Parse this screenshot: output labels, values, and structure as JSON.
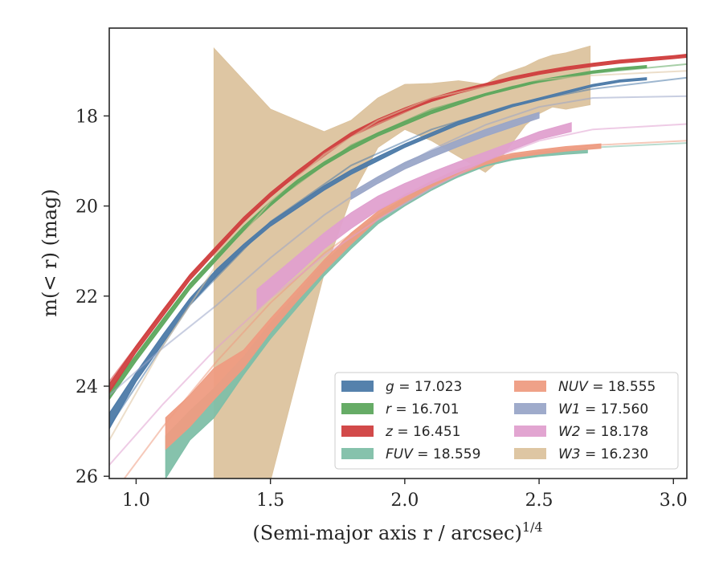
{
  "chart_data": {
    "type": "line",
    "xlabel": "(Semi-major axis r / arcsec)",
    "xlabel_sup": "1/4",
    "ylabel": "m(< r) (mag)",
    "xlim": [
      0.9,
      3.05
    ],
    "ylim": [
      26.05,
      16.05
    ],
    "y_inverted": true,
    "x_ticks": [
      1.0,
      1.5,
      2.0,
      2.5,
      3.0
    ],
    "x_tick_labels": [
      "1.0",
      "1.5",
      "2.0",
      "2.5",
      "3.0"
    ],
    "y_ticks": [
      18,
      20,
      22,
      24,
      26
    ],
    "y_tick_labels": [
      "18",
      "20",
      "22",
      "24",
      "26"
    ],
    "grid": false,
    "legend_position": "lower-right",
    "series": [
      {
        "name": "g = 17.023",
        "label_var": "g",
        "label_val": "17.023",
        "color": "#4c7aa8",
        "fill_x": [
          0.9,
          1.0,
          1.1,
          1.2,
          1.3,
          1.4,
          1.5,
          1.6,
          1.7,
          1.8,
          1.9,
          2.0,
          2.1,
          2.2,
          2.3,
          2.4,
          2.5,
          2.6,
          2.7,
          2.8,
          2.9
        ],
        "fill_lo": [
          24.95,
          23.9,
          23.05,
          22.2,
          21.55,
          20.95,
          20.45,
          20.05,
          19.65,
          19.3,
          19.0,
          18.7,
          18.45,
          18.2,
          18.0,
          17.8,
          17.65,
          17.5,
          17.35,
          17.25,
          17.2
        ],
        "fill_hi": [
          24.6,
          23.7,
          22.85,
          22.05,
          21.4,
          20.85,
          20.35,
          19.95,
          19.55,
          19.2,
          18.9,
          18.62,
          18.37,
          18.12,
          17.93,
          17.75,
          17.6,
          17.45,
          17.3,
          17.2,
          17.15
        ],
        "model_x": [
          0.9,
          1.2,
          1.5,
          1.8,
          2.1,
          2.4,
          2.7,
          3.05
        ],
        "model_y": [
          24.9,
          22.2,
          20.35,
          19.1,
          18.3,
          17.75,
          17.4,
          17.15
        ]
      },
      {
        "name": "r = 16.701",
        "label_var": "r",
        "label_val": "16.701",
        "color": "#5ea85e",
        "fill_x": [
          0.9,
          1.0,
          1.1,
          1.2,
          1.3,
          1.4,
          1.5,
          1.6,
          1.7,
          1.8,
          1.9,
          2.0,
          2.1,
          2.2,
          2.3,
          2.4,
          2.5,
          2.6,
          2.7,
          2.8,
          2.9
        ],
        "fill_lo": [
          24.3,
          23.45,
          22.65,
          21.85,
          21.2,
          20.55,
          20.0,
          19.5,
          19.1,
          18.75,
          18.45,
          18.2,
          17.95,
          17.75,
          17.55,
          17.4,
          17.25,
          17.15,
          17.05,
          16.98,
          16.93
        ],
        "fill_hi": [
          24.1,
          23.3,
          22.5,
          21.72,
          21.08,
          20.45,
          19.9,
          19.42,
          19.02,
          18.67,
          18.37,
          18.12,
          17.88,
          17.68,
          17.5,
          17.35,
          17.2,
          17.1,
          17.0,
          16.93,
          16.88
        ],
        "model_x": [
          0.9,
          1.2,
          1.5,
          1.8,
          2.1,
          2.4,
          2.7,
          3.05
        ],
        "model_y": [
          24.15,
          21.75,
          19.95,
          18.65,
          17.85,
          17.35,
          17.05,
          16.85
        ]
      },
      {
        "name": "z = 16.451",
        "label_var": "z",
        "label_val": "16.451",
        "color": "#d04040",
        "fill_x": [
          0.9,
          1.0,
          1.1,
          1.2,
          1.3,
          1.4,
          1.5,
          1.6,
          1.7,
          1.8,
          1.9,
          2.0,
          2.1,
          2.2,
          2.3,
          2.4,
          2.5,
          2.6,
          2.7,
          2.8,
          2.9,
          3.0,
          3.05
        ],
        "fill_lo": [
          24.15,
          23.25,
          22.45,
          21.65,
          21.0,
          20.35,
          19.8,
          19.3,
          18.85,
          18.45,
          18.15,
          17.9,
          17.68,
          17.5,
          17.35,
          17.2,
          17.08,
          16.98,
          16.9,
          16.83,
          16.78,
          16.73,
          16.7
        ],
        "fill_hi": [
          23.95,
          23.1,
          22.3,
          21.52,
          20.88,
          20.25,
          19.7,
          19.22,
          18.77,
          18.37,
          18.07,
          17.82,
          17.6,
          17.43,
          17.28,
          17.13,
          17.01,
          16.91,
          16.83,
          16.76,
          16.71,
          16.66,
          16.63
        ],
        "model_x": [
          0.9,
          1.2,
          1.5,
          1.8,
          2.1,
          2.4,
          2.7,
          3.05
        ],
        "model_y": [
          23.9,
          21.55,
          19.75,
          18.45,
          17.65,
          17.15,
          16.85,
          16.65
        ]
      },
      {
        "name": "FUV = 18.559",
        "label_var": "FUV",
        "label_val": "18.559",
        "color": "#7fbfa8",
        "fill_x": [
          1.11,
          1.2,
          1.29,
          1.4,
          1.5,
          1.6,
          1.7,
          1.8,
          1.9,
          2.0,
          2.1,
          2.2,
          2.3,
          2.4,
          2.5,
          2.6,
          2.68
        ],
        "fill_lo": [
          26.05,
          25.2,
          24.7,
          23.75,
          22.95,
          22.25,
          21.55,
          20.95,
          20.4,
          20.0,
          19.65,
          19.35,
          19.12,
          18.98,
          18.9,
          18.85,
          18.82
        ],
        "fill_hi": [
          25.1,
          24.55,
          24.05,
          23.35,
          22.6,
          21.95,
          21.25,
          20.7,
          20.2,
          19.82,
          19.5,
          19.22,
          19.02,
          18.88,
          18.8,
          18.75,
          18.72
        ],
        "model_x": [
          1.3,
          1.5,
          1.7,
          1.9,
          2.1,
          2.3,
          2.5,
          2.7,
          3.05
        ],
        "model_y": [
          24.6,
          22.85,
          21.4,
          20.35,
          19.6,
          19.1,
          18.85,
          18.7,
          18.6
        ]
      },
      {
        "name": "NUV = 18.555",
        "label_var": "NUV",
        "label_val": "18.555",
        "color": "#ee9c82",
        "fill_x": [
          1.11,
          1.2,
          1.29,
          1.4,
          1.5,
          1.6,
          1.7,
          1.8,
          1.9,
          2.0,
          2.1,
          2.2,
          2.3,
          2.4,
          2.5,
          2.6,
          2.73
        ],
        "fill_lo": [
          25.4,
          24.9,
          24.3,
          23.6,
          22.8,
          22.1,
          21.45,
          20.85,
          20.3,
          19.92,
          19.58,
          19.3,
          19.08,
          18.93,
          18.85,
          18.78,
          18.72
        ],
        "fill_hi": [
          24.7,
          24.2,
          23.6,
          23.2,
          22.5,
          21.85,
          21.2,
          20.6,
          20.12,
          19.75,
          19.45,
          19.18,
          18.98,
          18.83,
          18.75,
          18.68,
          18.62
        ],
        "model_x": [
          0.95,
          1.1,
          1.3,
          1.5,
          1.7,
          1.9,
          2.1,
          2.3,
          2.5,
          2.7,
          3.05
        ],
        "model_y": [
          26.1,
          24.9,
          23.45,
          22.15,
          21.05,
          20.2,
          19.55,
          19.05,
          18.8,
          18.65,
          18.55
        ]
      },
      {
        "name": "W1 = 17.560",
        "label_var": "W1",
        "label_val": "17.560",
        "color": "#9aa6c8",
        "fill_x": [
          1.8,
          1.9,
          2.0,
          2.1,
          2.2,
          2.3,
          2.4,
          2.5
        ],
        "fill_lo": [
          19.85,
          19.5,
          19.18,
          18.92,
          18.68,
          18.45,
          18.25,
          18.05
        ],
        "fill_hi": [
          19.7,
          19.35,
          19.03,
          18.77,
          18.53,
          18.3,
          18.1,
          17.92
        ],
        "model_x": [
          0.9,
          1.1,
          1.3,
          1.5,
          1.7,
          1.9,
          2.1,
          2.3,
          2.5,
          2.7,
          3.05
        ],
        "model_y": [
          24.2,
          23.15,
          22.2,
          21.15,
          20.2,
          19.4,
          18.75,
          18.2,
          17.8,
          17.6,
          17.56
        ]
      },
      {
        "name": "W2 = 18.178",
        "label_var": "W2",
        "label_val": "18.178",
        "color": "#e0a0cf",
        "fill_x": [
          1.45,
          1.6,
          1.7,
          1.8,
          1.9,
          2.0,
          2.1,
          2.2,
          2.3,
          2.4,
          2.5,
          2.62
        ],
        "fill_lo": [
          22.3,
          21.5,
          20.95,
          20.5,
          20.1,
          19.78,
          19.5,
          19.25,
          19.0,
          18.75,
          18.52,
          18.35
        ],
        "fill_hi": [
          21.85,
          21.1,
          20.6,
          20.15,
          19.78,
          19.5,
          19.25,
          19.02,
          18.8,
          18.58,
          18.35,
          18.15
        ],
        "model_x": [
          0.9,
          1.1,
          1.3,
          1.5,
          1.7,
          1.9,
          2.1,
          2.3,
          2.5,
          2.7,
          3.05
        ],
        "model_y": [
          25.75,
          24.4,
          23.15,
          22.05,
          21.1,
          20.3,
          19.6,
          19.0,
          18.55,
          18.3,
          18.18
        ]
      },
      {
        "name": "W3 = 16.230",
        "label_var": "W3",
        "label_val": "16.230",
        "color": "#dcc39e",
        "fill_x": [
          1.29,
          1.5,
          1.7,
          1.8,
          1.9,
          2.0,
          2.1,
          2.2,
          2.3,
          2.35,
          2.4,
          2.45,
          2.5,
          2.55,
          2.6,
          2.69
        ],
        "fill_lo": [
          26.1,
          26.1,
          21.5,
          19.8,
          18.7,
          18.3,
          18.55,
          18.9,
          19.25,
          19.0,
          18.6,
          18.2,
          17.95,
          17.8,
          17.85,
          17.75
        ],
        "fill_hi": [
          16.5,
          17.85,
          18.35,
          18.1,
          17.6,
          17.3,
          17.28,
          17.22,
          17.3,
          17.1,
          17.0,
          16.9,
          16.75,
          16.65,
          16.6,
          16.45
        ],
        "model_x": [
          0.9,
          1.1,
          1.3,
          1.5,
          1.7,
          1.9,
          2.1,
          2.3,
          2.5,
          2.7,
          3.05
        ],
        "model_y": [
          25.2,
          23.1,
          21.3,
          19.9,
          18.85,
          18.1,
          17.6,
          17.35,
          17.2,
          17.1,
          17.0
        ]
      }
    ]
  }
}
